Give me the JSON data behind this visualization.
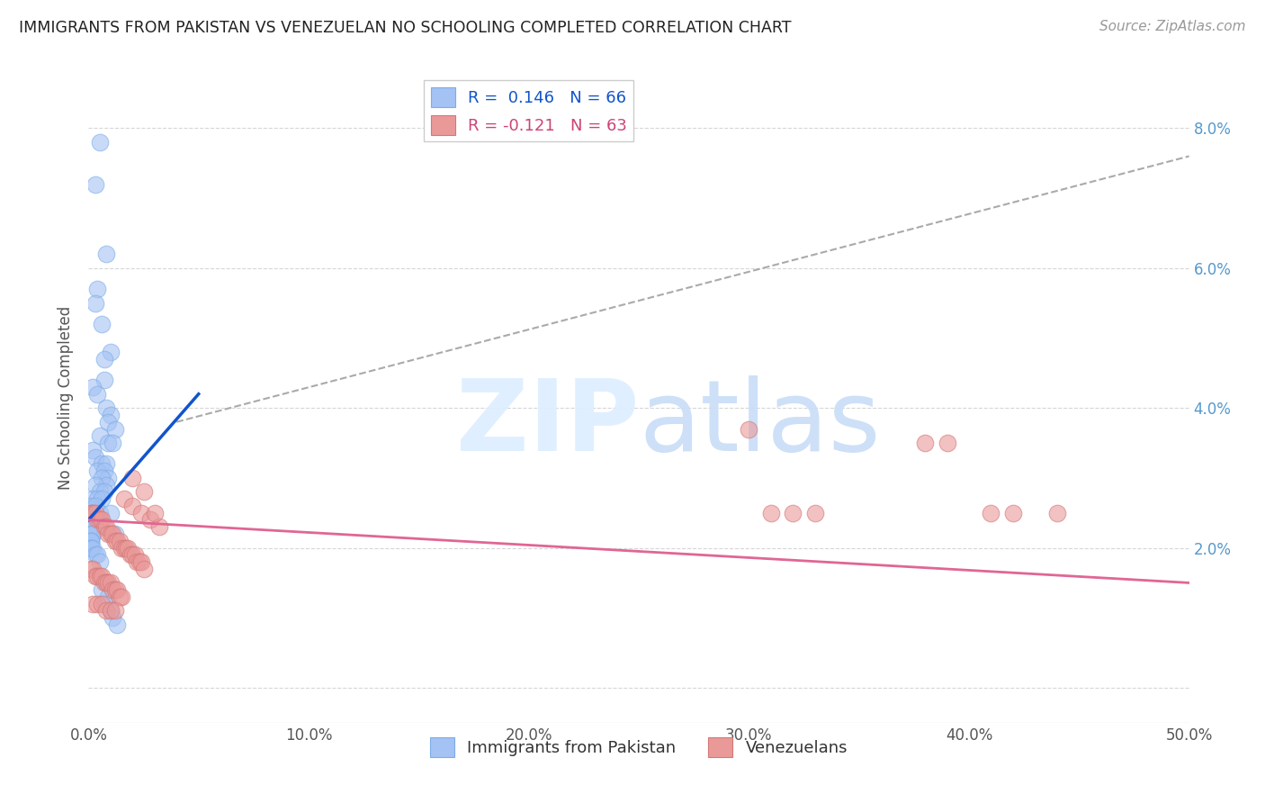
{
  "title": "IMMIGRANTS FROM PAKISTAN VS VENEZUELAN NO SCHOOLING COMPLETED CORRELATION CHART",
  "source": "Source: ZipAtlas.com",
  "ylabel": "No Schooling Completed",
  "x_min": 0.0,
  "x_max": 0.5,
  "y_min": -0.005,
  "y_max": 0.088,
  "R_pakistan": 0.146,
  "N_pakistan": 66,
  "R_venezuela": -0.121,
  "N_venezuela": 63,
  "color_pakistan": "#a4c2f4",
  "color_venezuela": "#ea9999",
  "trendline_pakistan_color": "#1155cc",
  "trendline_venezuela_color": "#e06694",
  "watermark_color": "#cce0f5",
  "pakistan_x": [
    0.005,
    0.003,
    0.008,
    0.004,
    0.003,
    0.006,
    0.01,
    0.007,
    0.007,
    0.002,
    0.004,
    0.008,
    0.01,
    0.009,
    0.012,
    0.005,
    0.009,
    0.011,
    0.002,
    0.003,
    0.006,
    0.008,
    0.004,
    0.007,
    0.009,
    0.006,
    0.008,
    0.003,
    0.005,
    0.007,
    0.002,
    0.004,
    0.006,
    0.001,
    0.003,
    0.005,
    0.001,
    0.002,
    0.003,
    0.001,
    0.002,
    0.001,
    0.002,
    0.001,
    0.002,
    0.001,
    0.002,
    0.001,
    0.001,
    0.001,
    0.001,
    0.001,
    0.001,
    0.002,
    0.003,
    0.004,
    0.005,
    0.01,
    0.012,
    0.008,
    0.006,
    0.009,
    0.007,
    0.01,
    0.011,
    0.013
  ],
  "pakistan_y": [
    0.078,
    0.072,
    0.062,
    0.057,
    0.055,
    0.052,
    0.048,
    0.047,
    0.044,
    0.043,
    0.042,
    0.04,
    0.039,
    0.038,
    0.037,
    0.036,
    0.035,
    0.035,
    0.034,
    0.033,
    0.032,
    0.032,
    0.031,
    0.031,
    0.03,
    0.03,
    0.029,
    0.029,
    0.028,
    0.028,
    0.027,
    0.027,
    0.027,
    0.026,
    0.026,
    0.025,
    0.025,
    0.025,
    0.024,
    0.024,
    0.024,
    0.023,
    0.023,
    0.023,
    0.022,
    0.022,
    0.022,
    0.021,
    0.021,
    0.021,
    0.02,
    0.02,
    0.02,
    0.02,
    0.019,
    0.019,
    0.018,
    0.025,
    0.022,
    0.015,
    0.014,
    0.013,
    0.012,
    0.011,
    0.01,
    0.009
  ],
  "venezuela_x": [
    0.001,
    0.002,
    0.003,
    0.004,
    0.005,
    0.006,
    0.007,
    0.008,
    0.009,
    0.01,
    0.011,
    0.012,
    0.013,
    0.014,
    0.015,
    0.016,
    0.017,
    0.018,
    0.019,
    0.02,
    0.021,
    0.022,
    0.023,
    0.024,
    0.025,
    0.001,
    0.002,
    0.003,
    0.004,
    0.005,
    0.006,
    0.007,
    0.008,
    0.009,
    0.01,
    0.011,
    0.012,
    0.013,
    0.014,
    0.015,
    0.002,
    0.004,
    0.006,
    0.008,
    0.01,
    0.012,
    0.016,
    0.02,
    0.024,
    0.028,
    0.032,
    0.02,
    0.025,
    0.03,
    0.31,
    0.32,
    0.33,
    0.38,
    0.39,
    0.41,
    0.42,
    0.44,
    0.3
  ],
  "venezuela_y": [
    0.025,
    0.025,
    0.025,
    0.024,
    0.024,
    0.024,
    0.023,
    0.023,
    0.022,
    0.022,
    0.022,
    0.021,
    0.021,
    0.021,
    0.02,
    0.02,
    0.02,
    0.02,
    0.019,
    0.019,
    0.019,
    0.018,
    0.018,
    0.018,
    0.017,
    0.017,
    0.017,
    0.016,
    0.016,
    0.016,
    0.016,
    0.015,
    0.015,
    0.015,
    0.015,
    0.014,
    0.014,
    0.014,
    0.013,
    0.013,
    0.012,
    0.012,
    0.012,
    0.011,
    0.011,
    0.011,
    0.027,
    0.026,
    0.025,
    0.024,
    0.023,
    0.03,
    0.028,
    0.025,
    0.025,
    0.025,
    0.025,
    0.035,
    0.035,
    0.025,
    0.025,
    0.025,
    0.037
  ],
  "pak_trend_x": [
    0.0,
    0.05
  ],
  "pak_trend_y": [
    0.024,
    0.042
  ],
  "dash_trend_x": [
    0.04,
    0.5
  ],
  "dash_trend_y": [
    0.038,
    0.076
  ],
  "ven_trend_x": [
    0.0,
    0.5
  ],
  "ven_trend_y": [
    0.024,
    0.015
  ]
}
